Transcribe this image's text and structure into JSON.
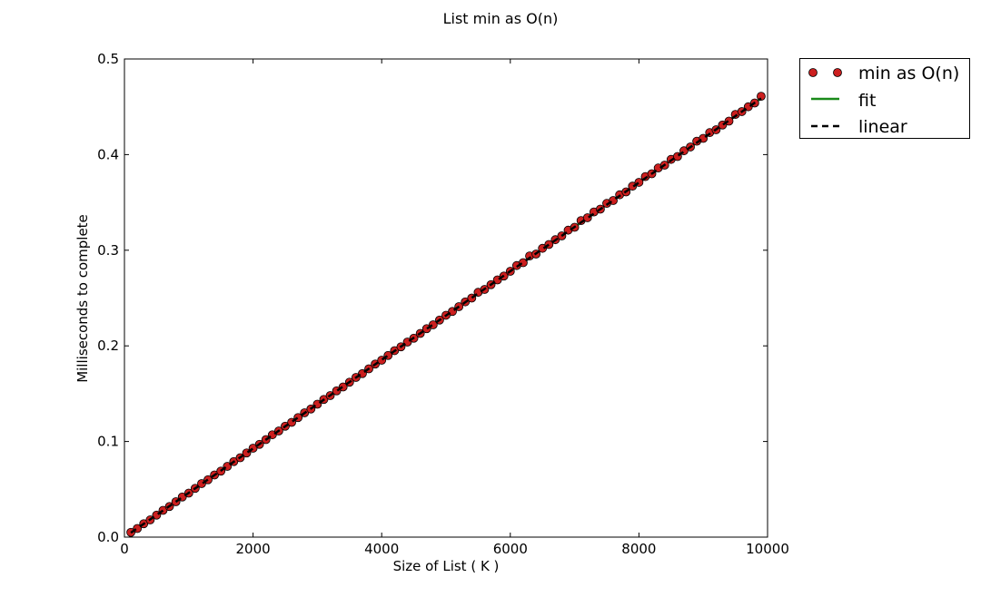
{
  "chart_data": {
    "type": "line",
    "title": "List min as O(n)",
    "xlabel": "Size of List ( K )",
    "ylabel": "Milliseconds to complete",
    "xlim": [
      0,
      10000
    ],
    "ylim": [
      0.0,
      0.5
    ],
    "xticks": [
      0,
      2000,
      4000,
      6000,
      8000,
      10000
    ],
    "yticks": [
      0.0,
      0.1,
      0.2,
      0.3,
      0.4,
      0.5
    ],
    "xtick_labels": [
      "0",
      "2000",
      "4000",
      "6000",
      "8000",
      "10000"
    ],
    "ytick_labels": [
      "0.0",
      "0.1",
      "0.2",
      "0.3",
      "0.4",
      "0.5"
    ],
    "grid": false,
    "legend_position": "outside-top-right",
    "series": [
      {
        "name": "min as O(n)",
        "style": "markers",
        "color": "#cc1f1f",
        "x": [
          100,
          200,
          300,
          400,
          500,
          600,
          700,
          800,
          900,
          1000,
          1100,
          1200,
          1300,
          1400,
          1500,
          1600,
          1700,
          1800,
          1900,
          2000,
          2100,
          2200,
          2300,
          2400,
          2500,
          2600,
          2700,
          2800,
          2900,
          3000,
          3100,
          3200,
          3300,
          3400,
          3500,
          3600,
          3700,
          3800,
          3900,
          4000,
          4100,
          4200,
          4300,
          4400,
          4500,
          4600,
          4700,
          4800,
          4900,
          5000,
          5100,
          5200,
          5300,
          5400,
          5500,
          5600,
          5700,
          5800,
          5900,
          6000,
          6100,
          6200,
          6300,
          6400,
          6500,
          6600,
          6700,
          6800,
          6900,
          7000,
          7100,
          7200,
          7300,
          7400,
          7500,
          7600,
          7700,
          7800,
          7900,
          8000,
          8100,
          8200,
          8300,
          8400,
          8500,
          8600,
          8700,
          8800,
          8900,
          9000,
          9100,
          9200,
          9300,
          9400,
          9500,
          9600,
          9700,
          9800,
          9900
        ],
        "y": [
          0.005,
          0.009,
          0.014,
          0.018,
          0.023,
          0.028,
          0.032,
          0.037,
          0.042,
          0.046,
          0.051,
          0.056,
          0.06,
          0.065,
          0.069,
          0.074,
          0.079,
          0.083,
          0.088,
          0.093,
          0.097,
          0.102,
          0.107,
          0.111,
          0.116,
          0.12,
          0.125,
          0.13,
          0.134,
          0.139,
          0.144,
          0.148,
          0.153,
          0.157,
          0.162,
          0.167,
          0.171,
          0.176,
          0.181,
          0.185,
          0.19,
          0.195,
          0.199,
          0.204,
          0.208,
          0.213,
          0.218,
          0.222,
          0.227,
          0.232,
          0.236,
          0.241,
          0.246,
          0.25,
          0.256,
          0.259,
          0.264,
          0.269,
          0.273,
          0.278,
          0.284,
          0.287,
          0.294,
          0.296,
          0.302,
          0.306,
          0.311,
          0.315,
          0.321,
          0.324,
          0.331,
          0.334,
          0.34,
          0.343,
          0.349,
          0.352,
          0.358,
          0.361,
          0.367,
          0.371,
          0.377,
          0.38,
          0.386,
          0.389,
          0.395,
          0.398,
          0.404,
          0.408,
          0.414,
          0.417,
          0.423,
          0.426,
          0.431,
          0.435,
          0.442,
          0.445,
          0.45,
          0.454,
          0.461
        ]
      },
      {
        "name": "fit",
        "style": "solid",
        "color": "#1a8a1a",
        "x": [
          100,
          9900
        ],
        "y": [
          0.0046,
          0.4588
        ]
      },
      {
        "name": "linear",
        "style": "dashed",
        "color": "#000000",
        "x": [
          100,
          9900
        ],
        "y": [
          0.0046,
          0.4588
        ]
      }
    ]
  }
}
